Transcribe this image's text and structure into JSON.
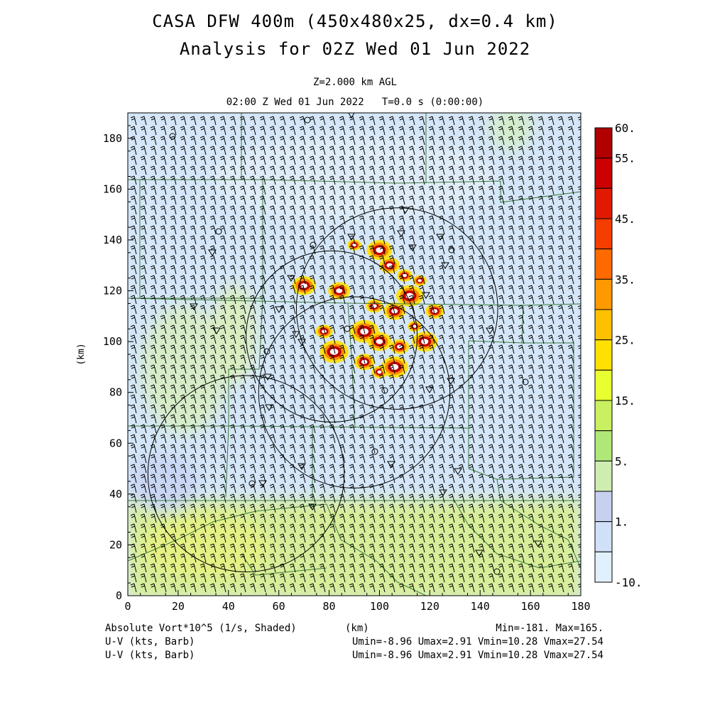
{
  "header": {
    "title_line1": "CASA DFW 400m (450x480x25, dx=0.4 km)",
    "title_line2": "Analysis for 02Z Wed 01 Jun 2022",
    "level": "Z=2.000 km AGL",
    "time": "02:00 Z Wed 01 Jun 2022   T=0.0 s (0:00:00)"
  },
  "axes": {
    "xlabel": "(km)",
    "ylabel": "(km)",
    "xrange": [
      0,
      180
    ],
    "yrange": [
      0,
      190
    ],
    "xticks": [
      "0",
      "20",
      "40",
      "60",
      "80",
      "100",
      "120",
      "140",
      "160",
      "180"
    ],
    "yticks": [
      "0",
      "20",
      "40",
      "60",
      "80",
      "100",
      "120",
      "140",
      "160",
      "180"
    ]
  },
  "colorbar": {
    "labels": [
      "60.",
      "55.",
      "45.",
      "35.",
      "25.",
      "15.",
      "5.",
      "1.",
      "-10."
    ],
    "colors": [
      "#b00000",
      "#cc0000",
      "#e01a00",
      "#f53d00",
      "#ff6a00",
      "#ff9900",
      "#ffc000",
      "#ffe000",
      "#e8ff30",
      "#c8f060",
      "#b0e878",
      "#cdeeb0",
      "#c8d0f0",
      "#d0e0f8",
      "#e0f0fc"
    ]
  },
  "footer": {
    "line1_left": "Absolute Vort*10^5 (1/s, Shaded)",
    "line1_mid": "(km)",
    "line1_right": "Min=-181. Max=165.",
    "line2_left": "U-V (kts, Barb)",
    "line2_right": "Umin=-8.96 Umax=2.91 Vmin=10.28 Vmax=27.54",
    "line3_left": "U-V (kts, Barb)",
    "line3_right": "Umin=-8.96 Umax=2.91 Vmin=10.28 Vmax=27.54"
  },
  "chart_data": {
    "type": "heatmap",
    "field": "Absolute Vort*10^5 (1/s, Shaded)",
    "vector_field": "U-V (kts, Barb)",
    "min": -181,
    "max": 165,
    "radar_rings_km": [
      {
        "cx": 107,
        "cy": 113,
        "r": 40
      },
      {
        "cx": 81,
        "cy": 102,
        "r": 34
      },
      {
        "cx": 90,
        "cy": 80,
        "r": 38
      },
      {
        "cx": 47,
        "cy": 48,
        "r": 39
      }
    ],
    "storm_cores_km": [
      [
        90,
        138
      ],
      [
        100,
        136
      ],
      [
        104,
        130
      ],
      [
        110,
        126
      ],
      [
        112,
        118
      ],
      [
        106,
        112
      ],
      [
        98,
        114
      ],
      [
        94,
        104
      ],
      [
        100,
        100
      ],
      [
        108,
        98
      ],
      [
        114,
        106
      ],
      [
        118,
        100
      ],
      [
        94,
        92
      ],
      [
        100,
        88
      ],
      [
        106,
        90
      ],
      [
        84,
        120
      ],
      [
        78,
        104
      ],
      [
        82,
        96
      ],
      [
        70,
        122
      ],
      [
        122,
        112
      ],
      [
        116,
        124
      ]
    ]
  }
}
